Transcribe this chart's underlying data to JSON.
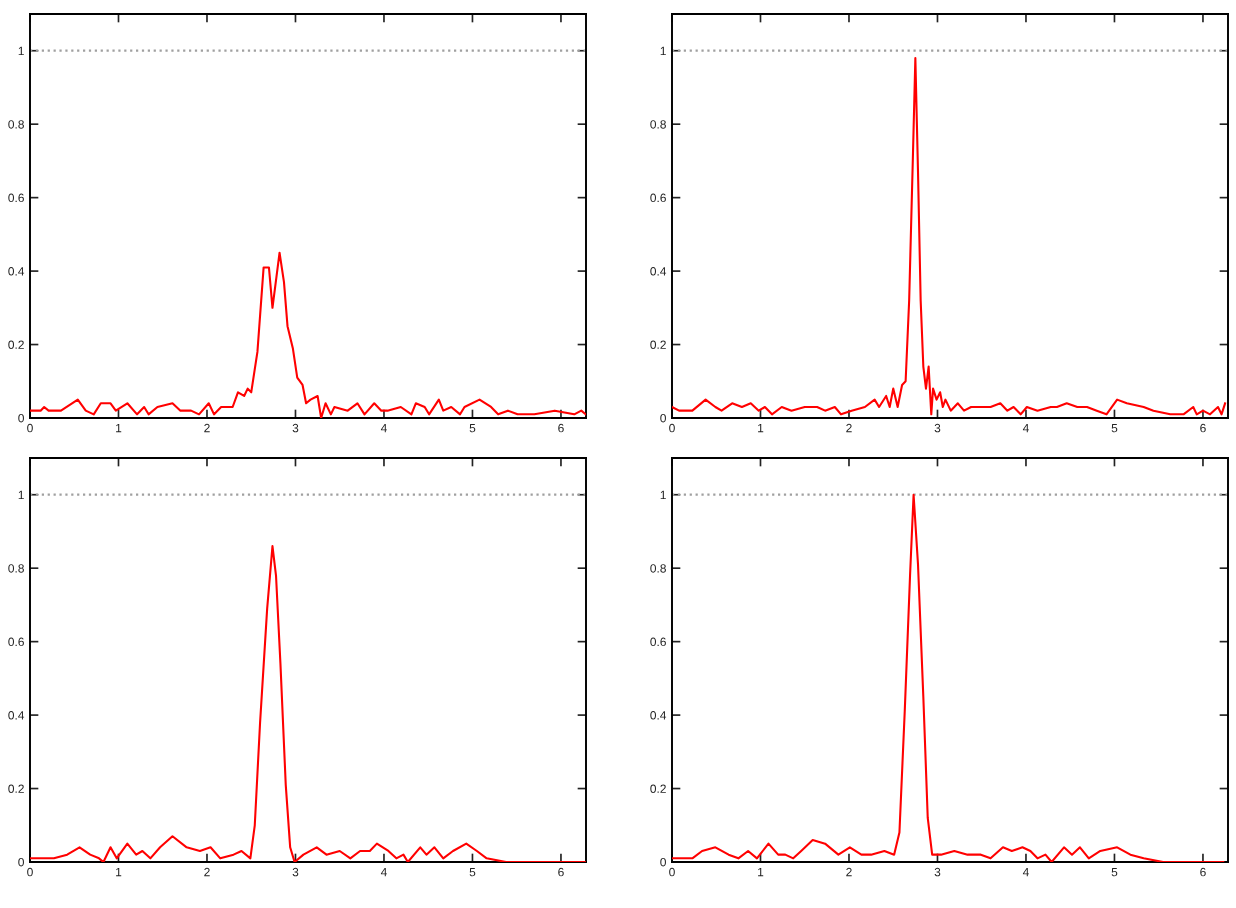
{
  "chart_data": [
    {
      "type": "line",
      "xlim": [
        0,
        6.283
      ],
      "ylim": [
        0,
        1.1
      ],
      "xticks": [
        0,
        1,
        2,
        3,
        4,
        5,
        6
      ],
      "yticks": [
        0,
        0.2,
        0.4,
        0.6,
        0.8,
        1
      ],
      "ref_lines": [
        {
          "axis": "y",
          "value": 1,
          "color": "#a0a0a0",
          "line_style": "dotted"
        }
      ],
      "x": [
        0,
        0.12,
        0.16,
        0.21,
        0.35,
        0.54,
        0.63,
        0.72,
        0.8,
        0.91,
        0.97,
        1.1,
        1.21,
        1.29,
        1.34,
        1.44,
        1.61,
        1.7,
        1.82,
        1.91,
        2.02,
        2.08,
        2.16,
        2.29,
        2.35,
        2.42,
        2.46,
        2.5,
        2.57,
        2.64,
        2.7,
        2.74,
        2.82,
        2.87,
        2.91,
        2.97,
        3.02,
        3.08,
        3.12,
        3.17,
        3.25,
        3.29,
        3.34,
        3.4,
        3.44,
        3.59,
        3.7,
        3.78,
        3.89,
        3.97,
        4.04,
        4.19,
        4.31,
        4.36,
        4.46,
        4.51,
        4.62,
        4.67,
        4.76,
        4.86,
        4.91,
        5.08,
        5.21,
        5.29,
        5.4,
        5.51,
        5.7,
        5.93,
        6.15,
        6.23,
        6.28
      ],
      "series": [
        {
          "color": "#ff0000",
          "values": [
            0.02,
            0.02,
            0.03,
            0.02,
            0.02,
            0.05,
            0.02,
            0.01,
            0.04,
            0.04,
            0.02,
            0.04,
            0.01,
            0.03,
            0.01,
            0.03,
            0.04,
            0.02,
            0.02,
            0.01,
            0.04,
            0.01,
            0.03,
            0.03,
            0.07,
            0.06,
            0.08,
            0.07,
            0.18,
            0.41,
            0.41,
            0.3,
            0.45,
            0.37,
            0.25,
            0.19,
            0.11,
            0.09,
            0.04,
            0.05,
            0.06,
            0,
            0.04,
            0.01,
            0.03,
            0.02,
            0.04,
            0.01,
            0.04,
            0.02,
            0.02,
            0.03,
            0.01,
            0.04,
            0.03,
            0.01,
            0.05,
            0.02,
            0.03,
            0.01,
            0.03,
            0.05,
            0.03,
            0.01,
            0.02,
            0.01,
            0.01,
            0.02,
            0.01,
            0.02,
            0.01
          ]
        }
      ]
    },
    {
      "type": "line",
      "xlim": [
        0,
        6.283
      ],
      "ylim": [
        0,
        1.1
      ],
      "xticks": [
        0,
        1,
        2,
        3,
        4,
        5,
        6
      ],
      "yticks": [
        0,
        0.2,
        0.4,
        0.6,
        0.8,
        1
      ],
      "ref_lines": [
        {
          "axis": "y",
          "value": 1,
          "color": "#a0a0a0",
          "line_style": "dotted"
        }
      ],
      "x": [
        0,
        0.08,
        0.23,
        0.38,
        0.49,
        0.56,
        0.68,
        0.79,
        0.89,
        0.98,
        1.05,
        1.13,
        1.24,
        1.35,
        1.5,
        1.64,
        1.73,
        1.84,
        1.91,
        2.03,
        2.18,
        2.29,
        2.34,
        2.42,
        2.46,
        2.5,
        2.55,
        2.6,
        2.64,
        2.68,
        2.72,
        2.75,
        2.78,
        2.81,
        2.84,
        2.87,
        2.9,
        2.93,
        2.95,
        2.99,
        3.03,
        3.06,
        3.09,
        3.15,
        3.23,
        3.3,
        3.38,
        3.49,
        3.6,
        3.71,
        3.79,
        3.86,
        3.94,
        4.01,
        4.13,
        4.28,
        4.35,
        4.46,
        4.58,
        4.69,
        4.8,
        4.91,
        5.03,
        5.14,
        5.33,
        5.44,
        5.63,
        5.78,
        5.89,
        5.93,
        6,
        6.08,
        6.17,
        6.21,
        6.25
      ],
      "series": [
        {
          "color": "#ff0000",
          "values": [
            0.03,
            0.02,
            0.02,
            0.05,
            0.03,
            0.02,
            0.04,
            0.03,
            0.04,
            0.02,
            0.03,
            0.01,
            0.03,
            0.02,
            0.03,
            0.03,
            0.02,
            0.03,
            0.01,
            0.02,
            0.03,
            0.05,
            0.03,
            0.06,
            0.03,
            0.08,
            0.03,
            0.09,
            0.1,
            0.32,
            0.69,
            0.98,
            0.67,
            0.32,
            0.14,
            0.08,
            0.14,
            0.01,
            0.08,
            0.05,
            0.07,
            0.03,
            0.05,
            0.02,
            0.04,
            0.02,
            0.03,
            0.03,
            0.03,
            0.04,
            0.02,
            0.03,
            0.01,
            0.03,
            0.02,
            0.03,
            0.03,
            0.04,
            0.03,
            0.03,
            0.02,
            0.01,
            0.05,
            0.04,
            0.03,
            0.02,
            0.01,
            0.01,
            0.03,
            0.01,
            0.02,
            0.01,
            0.03,
            0.01,
            0.04
          ]
        }
      ]
    },
    {
      "type": "line",
      "xlim": [
        0,
        6.283
      ],
      "ylim": [
        0,
        1.1
      ],
      "xticks": [
        0,
        1,
        2,
        3,
        4,
        5,
        6
      ],
      "yticks": [
        0,
        0.2,
        0.4,
        0.6,
        0.8,
        1
      ],
      "ref_lines": [
        {
          "axis": "y",
          "value": 1,
          "color": "#a0a0a0",
          "line_style": "dotted"
        }
      ],
      "x": [
        0,
        0.27,
        0.42,
        0.56,
        0.68,
        0.78,
        0.83,
        0.91,
        0.98,
        1.1,
        1.2,
        1.27,
        1.36,
        1.47,
        1.61,
        1.77,
        1.92,
        2.04,
        2.15,
        2.3,
        2.39,
        2.49,
        2.54,
        2.6,
        2.68,
        2.74,
        2.78,
        2.83,
        2.89,
        2.94,
        2.99,
        3.09,
        3.24,
        3.35,
        3.5,
        3.62,
        3.73,
        3.84,
        3.92,
        4.05,
        4.14,
        4.22,
        4.27,
        4.41,
        4.48,
        4.57,
        4.67,
        4.78,
        4.93,
        5.05,
        5.16,
        5.38,
        5.61,
        5.98,
        6.27
      ],
      "series": [
        {
          "color": "#ff0000",
          "values": [
            0.01,
            0.01,
            0.02,
            0.04,
            0.02,
            0.01,
            0,
            0.04,
            0.01,
            0.05,
            0.02,
            0.03,
            0.01,
            0.04,
            0.07,
            0.04,
            0.03,
            0.04,
            0.01,
            0.02,
            0.03,
            0.01,
            0.1,
            0.38,
            0.69,
            0.86,
            0.78,
            0.54,
            0.21,
            0.04,
            0,
            0.02,
            0.04,
            0.02,
            0.03,
            0.01,
            0.03,
            0.03,
            0.05,
            0.03,
            0.01,
            0.02,
            0,
            0.04,
            0.02,
            0.04,
            0.01,
            0.03,
            0.05,
            0.03,
            0.01,
            0,
            0,
            0,
            0
          ]
        }
      ]
    },
    {
      "type": "line",
      "xlim": [
        0,
        6.283
      ],
      "ylim": [
        0,
        1.1
      ],
      "xticks": [
        0,
        1,
        2,
        3,
        4,
        5,
        6
      ],
      "yticks": [
        0,
        0.2,
        0.4,
        0.6,
        0.8,
        1
      ],
      "ref_lines": [
        {
          "axis": "y",
          "value": 1,
          "color": "#a0a0a0",
          "line_style": "dotted"
        }
      ],
      "x": [
        0,
        0.23,
        0.34,
        0.49,
        0.64,
        0.75,
        0.86,
        0.96,
        1.09,
        1.2,
        1.28,
        1.37,
        1.46,
        1.59,
        1.73,
        1.88,
        2.01,
        2.14,
        2.25,
        2.4,
        2.51,
        2.57,
        2.63,
        2.69,
        2.73,
        2.78,
        2.84,
        2.89,
        2.94,
        3.04,
        3.19,
        3.34,
        3.49,
        3.6,
        3.74,
        3.84,
        3.96,
        4.05,
        4.13,
        4.22,
        4.29,
        4.43,
        4.52,
        4.61,
        4.71,
        4.84,
        5.03,
        5.18,
        5.33,
        5.55,
        5.93,
        6.23
      ],
      "series": [
        {
          "color": "#ff0000",
          "values": [
            0.01,
            0.01,
            0.03,
            0.04,
            0.02,
            0.01,
            0.03,
            0.01,
            0.05,
            0.02,
            0.02,
            0.01,
            0.03,
            0.06,
            0.05,
            0.02,
            0.04,
            0.02,
            0.02,
            0.03,
            0.02,
            0.08,
            0.41,
            0.78,
            1.0,
            0.81,
            0.45,
            0.12,
            0.02,
            0.02,
            0.03,
            0.02,
            0.02,
            0.01,
            0.04,
            0.03,
            0.04,
            0.03,
            0.01,
            0.02,
            0,
            0.04,
            0.02,
            0.04,
            0.01,
            0.03,
            0.04,
            0.02,
            0.01,
            0,
            0,
            0
          ]
        }
      ]
    }
  ]
}
